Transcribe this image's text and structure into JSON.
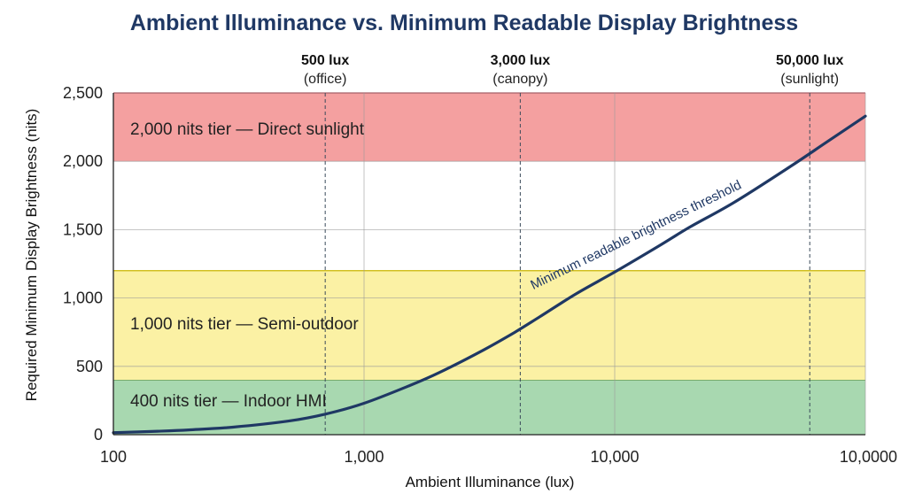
{
  "chart_data": {
    "type": "line",
    "title": "Ambient Illuminance vs. Minimum Readable Display Brightness",
    "xlabel": "Ambient Illuminance (lux)",
    "ylabel": "Required Minimum Display Brightness (nits)",
    "x_scale": "log",
    "xlim": [
      100,
      100000
    ],
    "ylim": [
      0,
      2500
    ],
    "x_tick_labels": [
      "100",
      "1,000",
      "10,000",
      "10,0000"
    ],
    "x_tick_values": [
      100,
      1000,
      10000,
      100000
    ],
    "y_ticks": [
      0,
      500,
      1000,
      1500,
      2000,
      2500
    ],
    "y_tick_labels": [
      "0",
      "500",
      "1,000",
      "1,500",
      "2,000",
      "2,500"
    ],
    "grid": true,
    "bands": [
      {
        "label": "400 nits tier — Indoor HMI",
        "y_range": [
          0,
          400
        ],
        "color": "#a8d8b0",
        "edge": "#3c8a4a"
      },
      {
        "label": "1,000 nits tier — Semi-outdoor",
        "y_range": [
          400,
          1200
        ],
        "color": "#fbf1a4",
        "edge": "#c9b400"
      },
      {
        "label": "2,000 nits tier — Direct sunlight",
        "y_range": [
          2000,
          2500
        ],
        "color": "#f4a0a0",
        "edge": "#b03040"
      }
    ],
    "reference_lines": [
      {
        "value_label": "500 lux",
        "desc": "(office)",
        "x": 700
      },
      {
        "value_label": "3,000 lux",
        "desc": "(canopy)",
        "x": 4200
      },
      {
        "value_label": "50,000 lux",
        "desc": "(sunlight)",
        "x": 60000
      }
    ],
    "series": [
      {
        "name": "Minimum readable brightness threshold",
        "color": "#1f3864",
        "x": [
          100,
          150,
          200,
          300,
          500,
          700,
          1000,
          1500,
          2000,
          3000,
          4000,
          5000,
          7000,
          10000,
          15000,
          20000,
          30000,
          50000,
          70000,
          100000
        ],
        "y": [
          15,
          25,
          35,
          55,
          100,
          150,
          230,
          355,
          455,
          620,
          750,
          860,
          1030,
          1190,
          1380,
          1520,
          1700,
          1960,
          2140,
          2330
        ]
      }
    ]
  }
}
